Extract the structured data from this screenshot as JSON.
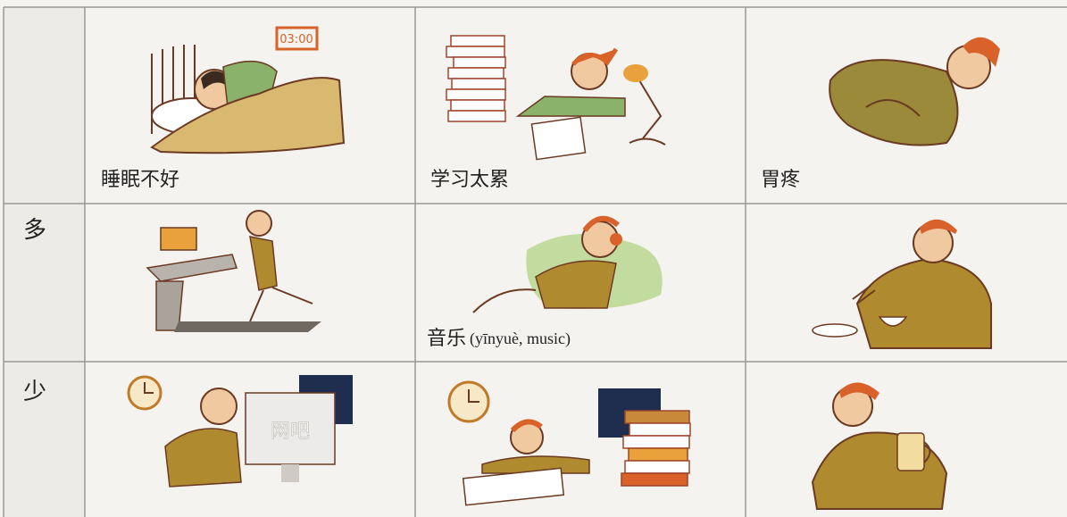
{
  "table": {
    "rows": [
      {
        "cells": [
          {
            "caption": "睡眠不好",
            "clock_display": "03:00"
          },
          {
            "caption": "学习太累"
          },
          {
            "caption": "胃疼"
          }
        ]
      },
      {
        "label": "多",
        "cells": [
          {},
          {
            "caption": "音乐",
            "pinyin_gloss": "(yīnyuè, music)"
          },
          {}
        ]
      },
      {
        "label": "少",
        "cells": [
          {
            "sign": "网吧"
          },
          {},
          {}
        ]
      }
    ]
  }
}
